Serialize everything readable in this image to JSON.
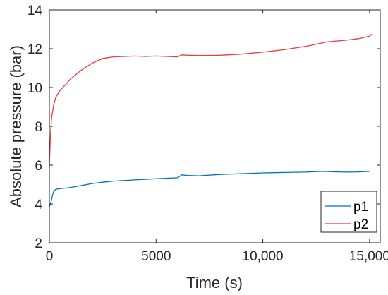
{
  "chart_data": {
    "type": "line",
    "xlabel": "Time (s)",
    "ylabel": "Absolute pressure (bar)",
    "xlim": [
      0,
      15500
    ],
    "ylim": [
      2,
      14
    ],
    "xticks": [
      0,
      5000,
      10000,
      15000
    ],
    "xtick_labels": [
      "0",
      "5000",
      "10,000",
      "15,000"
    ],
    "yticks": [
      2,
      4,
      6,
      8,
      10,
      12,
      14
    ],
    "ytick_labels": [
      "2",
      "4",
      "6",
      "8",
      "10",
      "12",
      "14"
    ],
    "grid": false,
    "legend_position": "bottom-right",
    "series": [
      {
        "name": "p1",
        "color": "#0072BD",
        "x": [
          0,
          50,
          100,
          150,
          200,
          300,
          400,
          600,
          800,
          1000,
          1500,
          2000,
          2500,
          3000,
          4000,
          5000,
          6000,
          6100,
          6200,
          6500,
          7000,
          8000,
          9000,
          10000,
          11000,
          12000,
          12800,
          13500,
          14000,
          14500,
          15000
        ],
        "y": [
          3.85,
          4.0,
          4.2,
          4.45,
          4.65,
          4.75,
          4.78,
          4.8,
          4.82,
          4.85,
          4.95,
          5.05,
          5.12,
          5.18,
          5.24,
          5.3,
          5.35,
          5.42,
          5.5,
          5.47,
          5.45,
          5.52,
          5.56,
          5.6,
          5.62,
          5.64,
          5.68,
          5.65,
          5.64,
          5.65,
          5.68
        ]
      },
      {
        "name": "p2",
        "color": "#EE3B3B",
        "x": [
          0,
          50,
          100,
          200,
          300,
          500,
          800,
          1000,
          1500,
          2000,
          2500,
          3000,
          3500,
          4000,
          4500,
          5000,
          5500,
          6000,
          6200,
          6500,
          7000,
          8000,
          9000,
          10000,
          11000,
          12000,
          13000,
          14000,
          14500,
          15000,
          15100
        ],
        "y": [
          6.0,
          7.5,
          8.4,
          9.1,
          9.5,
          9.85,
          10.2,
          10.45,
          10.9,
          11.25,
          11.5,
          11.58,
          11.6,
          11.62,
          11.6,
          11.62,
          11.6,
          11.58,
          11.68,
          11.66,
          11.65,
          11.66,
          11.72,
          11.82,
          11.95,
          12.12,
          12.35,
          12.45,
          12.52,
          12.65,
          12.75
        ]
      }
    ]
  }
}
